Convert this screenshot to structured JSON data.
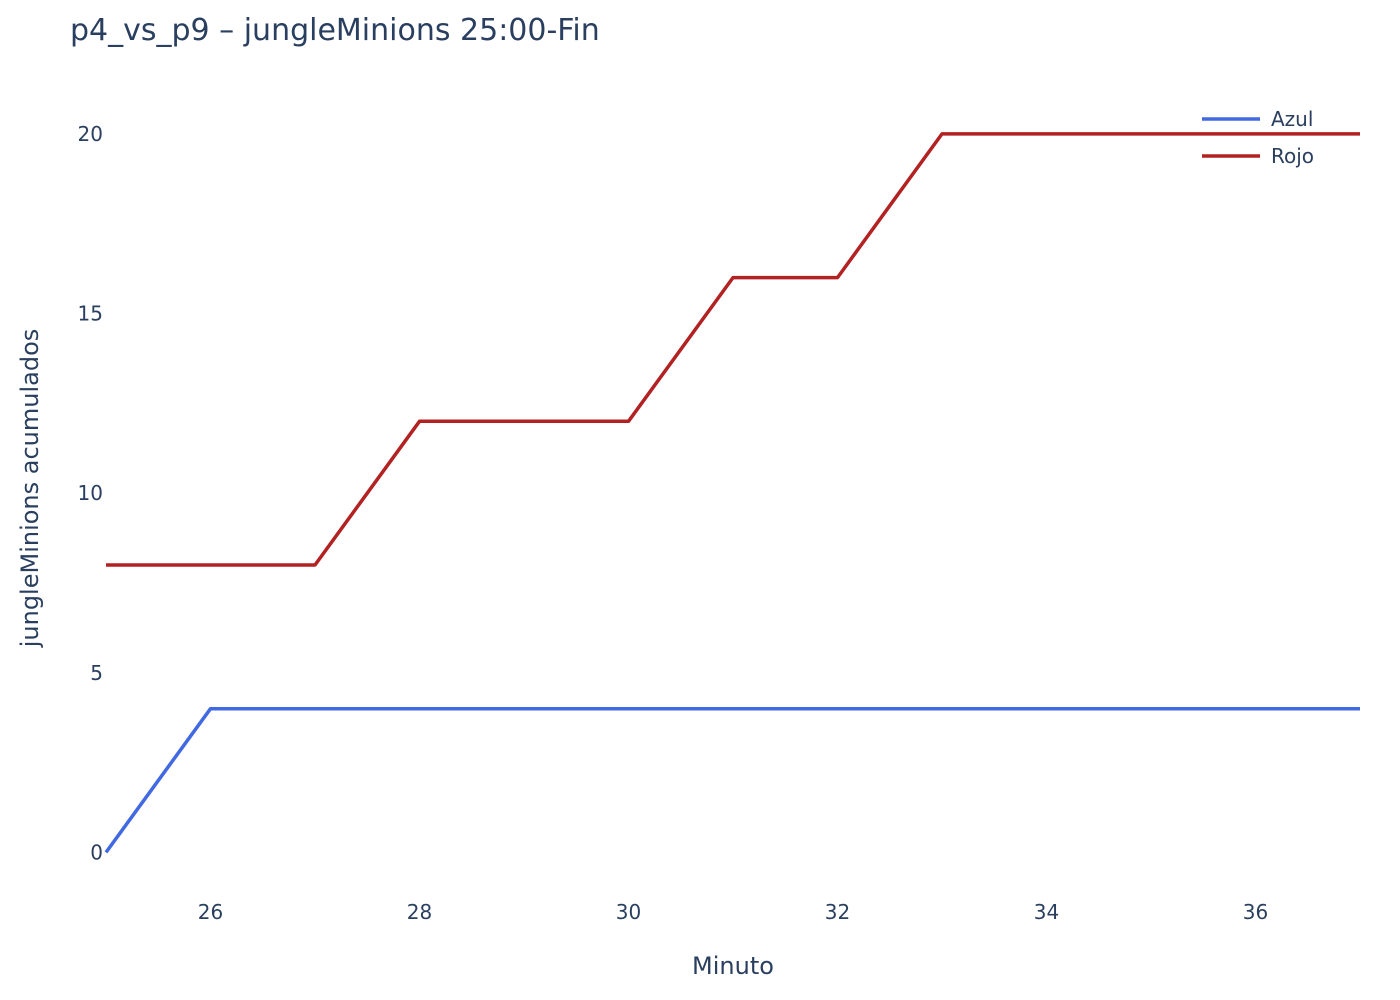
{
  "chart_data": {
    "type": "line",
    "title": "p4_vs_p9 – jungleMinions 25:00-Fin",
    "xlabel": "Minuto",
    "ylabel": "jungleMinions acumulados",
    "x": [
      25,
      26,
      27,
      28,
      29,
      30,
      31,
      32,
      33,
      34,
      35,
      36,
      37
    ],
    "xlim": [
      25,
      37
    ],
    "ylim": [
      -0.6,
      21
    ],
    "x_ticks": [
      26,
      28,
      30,
      32,
      34,
      36
    ],
    "y_ticks": [
      0,
      5,
      10,
      15,
      20
    ],
    "grid": false,
    "legend_position": "top-right",
    "series": [
      {
        "name": "Azul",
        "color": "#4169e1",
        "values": [
          0,
          4,
          4,
          4,
          4,
          4,
          4,
          4,
          4,
          4,
          4,
          4,
          4
        ]
      },
      {
        "name": "Rojo",
        "color": "#b22222",
        "values": [
          8,
          8,
          8,
          12,
          12,
          12,
          16,
          16,
          20,
          20,
          20,
          20,
          20
        ]
      }
    ]
  }
}
